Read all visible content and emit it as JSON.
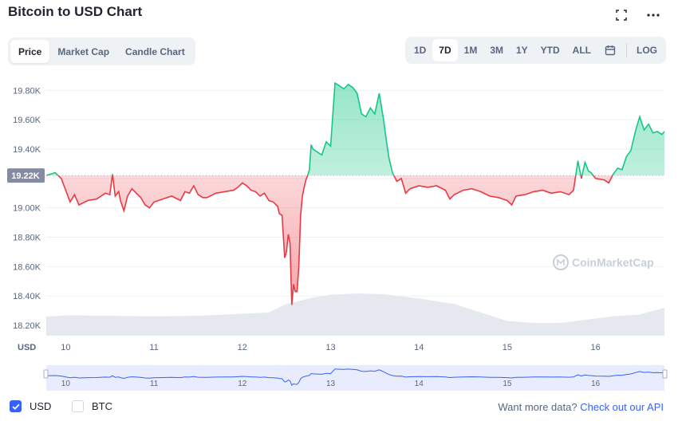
{
  "title": "Bitcoin to USD Chart",
  "tabs": [
    {
      "label": "Price",
      "active": true
    },
    {
      "label": "Market Cap",
      "active": false
    },
    {
      "label": "Candle Chart",
      "active": false
    }
  ],
  "ranges": [
    {
      "label": "1D",
      "active": false
    },
    {
      "label": "7D",
      "active": true
    },
    {
      "label": "1M",
      "active": false
    },
    {
      "label": "3M",
      "active": false
    },
    {
      "label": "1Y",
      "active": false
    },
    {
      "label": "YTD",
      "active": false
    },
    {
      "label": "ALL",
      "active": false
    }
  ],
  "log_label": "LOG",
  "icons": {
    "fullscreen": "fullscreen-icon",
    "more": "more-options-icon",
    "calendar": "calendar-icon"
  },
  "colors": {
    "up": "#16c784",
    "down": "#ea3943",
    "accent": "#3861fb",
    "baseline_label": "#858ca2"
  },
  "footer": {
    "usd_label": "USD",
    "btc_label": "BTC",
    "more_text": "Want more data?",
    "api_link": "Check out our API"
  },
  "watermark": "CoinMarketCap",
  "chart_data": {
    "type": "line",
    "y_unit_label": "USD",
    "baseline": 19220,
    "baseline_label": "19.22K",
    "ylim": [
      18130,
      19910
    ],
    "xlim": [
      9.78,
      16.78
    ],
    "y_ticks": [
      {
        "value": 18200,
        "label": "18.20K"
      },
      {
        "value": 18400,
        "label": "18.40K"
      },
      {
        "value": 18600,
        "label": "18.60K"
      },
      {
        "value": 18800,
        "label": "18.80K"
      },
      {
        "value": 19000,
        "label": "19.00K"
      },
      {
        "value": 19200,
        "label": "19.20K"
      },
      {
        "value": 19400,
        "label": "19.40K"
      },
      {
        "value": 19600,
        "label": "19.60K"
      },
      {
        "value": 19800,
        "label": "19.80K"
      }
    ],
    "x_ticks": [
      {
        "value": 10,
        "label": "10"
      },
      {
        "value": 11,
        "label": "11"
      },
      {
        "value": 12,
        "label": "12"
      },
      {
        "value": 13,
        "label": "13"
      },
      {
        "value": 14,
        "label": "14"
      },
      {
        "value": 15,
        "label": "15"
      },
      {
        "value": 16,
        "label": "16"
      }
    ],
    "series": [
      {
        "points": [
          [
            9.78,
            19220
          ],
          [
            9.88,
            19240
          ],
          [
            9.95,
            19200
          ],
          [
            10.0,
            19120
          ],
          [
            10.05,
            19040
          ],
          [
            10.1,
            19090
          ],
          [
            10.15,
            19020
          ],
          [
            10.25,
            19050
          ],
          [
            10.35,
            19060
          ],
          [
            10.45,
            19100
          ],
          [
            10.5,
            19090
          ],
          [
            10.53,
            19230
          ],
          [
            10.56,
            19080
          ],
          [
            10.6,
            19110
          ],
          [
            10.62,
            19050
          ],
          [
            10.66,
            18980
          ],
          [
            10.7,
            19080
          ],
          [
            10.75,
            19130
          ],
          [
            10.8,
            19100
          ],
          [
            10.85,
            19070
          ],
          [
            10.9,
            19020
          ],
          [
            10.95,
            19000
          ],
          [
            11.0,
            19040
          ],
          [
            11.1,
            19060
          ],
          [
            11.2,
            19080
          ],
          [
            11.3,
            19050
          ],
          [
            11.35,
            19110
          ],
          [
            11.4,
            19100
          ],
          [
            11.45,
            19150
          ],
          [
            11.5,
            19090
          ],
          [
            11.55,
            19070
          ],
          [
            11.6,
            19070
          ],
          [
            11.7,
            19100
          ],
          [
            11.8,
            19110
          ],
          [
            11.9,
            19120
          ],
          [
            11.95,
            19140
          ],
          [
            12.0,
            19170
          ],
          [
            12.05,
            19150
          ],
          [
            12.1,
            19120
          ],
          [
            12.15,
            19110
          ],
          [
            12.2,
            19080
          ],
          [
            12.25,
            19100
          ],
          [
            12.3,
            19050
          ],
          [
            12.35,
            19040
          ],
          [
            12.4,
            19010
          ],
          [
            12.42,
            18960
          ],
          [
            12.45,
            18950
          ],
          [
            12.48,
            18660
          ],
          [
            12.5,
            18700
          ],
          [
            12.52,
            18820
          ],
          [
            12.54,
            18760
          ],
          [
            12.56,
            18340
          ],
          [
            12.58,
            18480
          ],
          [
            12.6,
            18430
          ],
          [
            12.62,
            18430
          ],
          [
            12.64,
            18600
          ],
          [
            12.66,
            18950
          ],
          [
            12.68,
            19080
          ],
          [
            12.7,
            19140
          ],
          [
            12.72,
            19190
          ],
          [
            12.74,
            19220
          ],
          [
            12.76,
            19260
          ],
          [
            12.78,
            19430
          ],
          [
            12.8,
            19400
          ],
          [
            12.85,
            19380
          ],
          [
            12.9,
            19360
          ],
          [
            12.95,
            19450
          ],
          [
            13.0,
            19420
          ],
          [
            13.05,
            19850
          ],
          [
            13.1,
            19830
          ],
          [
            13.15,
            19810
          ],
          [
            13.2,
            19840
          ],
          [
            13.25,
            19820
          ],
          [
            13.3,
            19780
          ],
          [
            13.35,
            19640
          ],
          [
            13.4,
            19620
          ],
          [
            13.45,
            19680
          ],
          [
            13.5,
            19640
          ],
          [
            13.55,
            19780
          ],
          [
            13.6,
            19600
          ],
          [
            13.63,
            19460
          ],
          [
            13.66,
            19340
          ],
          [
            13.7,
            19240
          ],
          [
            13.75,
            19180
          ],
          [
            13.8,
            19200
          ],
          [
            13.85,
            19100
          ],
          [
            13.9,
            19130
          ],
          [
            14.0,
            19150
          ],
          [
            14.1,
            19140
          ],
          [
            14.2,
            19150
          ],
          [
            14.3,
            19120
          ],
          [
            14.35,
            19060
          ],
          [
            14.4,
            19090
          ],
          [
            14.5,
            19120
          ],
          [
            14.6,
            19130
          ],
          [
            14.7,
            19110
          ],
          [
            14.8,
            19080
          ],
          [
            14.9,
            19070
          ],
          [
            15.0,
            19050
          ],
          [
            15.05,
            19020
          ],
          [
            15.1,
            19080
          ],
          [
            15.2,
            19090
          ],
          [
            15.3,
            19110
          ],
          [
            15.4,
            19120
          ],
          [
            15.5,
            19100
          ],
          [
            15.6,
            19110
          ],
          [
            15.7,
            19090
          ],
          [
            15.75,
            19120
          ],
          [
            15.8,
            19320
          ],
          [
            15.84,
            19200
          ],
          [
            15.88,
            19310
          ],
          [
            15.92,
            19250
          ],
          [
            15.95,
            19240
          ],
          [
            16.0,
            19200
          ],
          [
            16.1,
            19190
          ],
          [
            16.15,
            19170
          ],
          [
            16.2,
            19230
          ],
          [
            16.25,
            19270
          ],
          [
            16.3,
            19260
          ],
          [
            16.35,
            19350
          ],
          [
            16.4,
            19390
          ],
          [
            16.45,
            19520
          ],
          [
            16.5,
            19620
          ],
          [
            16.55,
            19530
          ],
          [
            16.6,
            19570
          ],
          [
            16.65,
            19510
          ],
          [
            16.7,
            19520
          ],
          [
            16.75,
            19500
          ],
          [
            16.78,
            19520
          ]
        ]
      }
    ],
    "volume": [
      [
        9.78,
        0.45
      ],
      [
        10.0,
        0.48
      ],
      [
        10.5,
        0.47
      ],
      [
        11.0,
        0.46
      ],
      [
        11.5,
        0.47
      ],
      [
        12.0,
        0.52
      ],
      [
        12.3,
        0.55
      ],
      [
        12.5,
        0.75
      ],
      [
        12.8,
        0.9
      ],
      [
        13.0,
        0.97
      ],
      [
        13.3,
        1.0
      ],
      [
        13.6,
        0.98
      ],
      [
        14.0,
        0.88
      ],
      [
        14.4,
        0.75
      ],
      [
        14.7,
        0.55
      ],
      [
        15.0,
        0.35
      ],
      [
        15.3,
        0.3
      ],
      [
        15.6,
        0.3
      ],
      [
        15.9,
        0.38
      ],
      [
        16.2,
        0.46
      ],
      [
        16.5,
        0.5
      ],
      [
        16.78,
        0.66
      ]
    ],
    "navigator": {
      "xlim": [
        9.78,
        16.78
      ],
      "x_ticks": [
        {
          "value": 10,
          "label": "10"
        },
        {
          "value": 11,
          "label": "11"
        },
        {
          "value": 12,
          "label": "12"
        },
        {
          "value": 13,
          "label": "13"
        },
        {
          "value": 14,
          "label": "14"
        },
        {
          "value": 15,
          "label": "15"
        },
        {
          "value": 16,
          "label": "16"
        }
      ]
    }
  }
}
